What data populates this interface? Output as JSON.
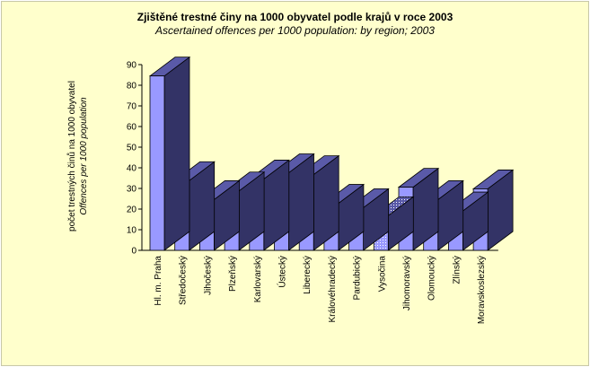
{
  "chart_data": {
    "type": "bar",
    "title": "Zjištěné trestné činy na 1000 obyvatel podle krajů  v roce 2003",
    "subtitle": "Ascertained offences per 1000 population: by region; 2003",
    "ylabel": "počet trestných činů na 1000 obyvatel",
    "ylabel_en": "Offences per 1000 population",
    "categories": [
      "Hl. m. Praha",
      "Středočeský",
      "Jihočeský",
      "Plzeňský",
      "Karlovarský",
      "Ústecký",
      "Liberecký",
      "Královéhradecký",
      "Pardubický",
      "Vysočina",
      "Jihomoravský",
      "Olomoucký",
      "Zlínský",
      "Moravskoslezský"
    ],
    "values": [
      84.5,
      33.8,
      24.6,
      28.8,
      34.6,
      37.6,
      36.7,
      22.8,
      20.7,
      16.8,
      30.6,
      24.6,
      19.1,
      29.8
    ],
    "highlight_index": 9,
    "ylim": [
      0,
      90
    ],
    "yticks": [
      0,
      10,
      20,
      30,
      40,
      50,
      60,
      70,
      80,
      90
    ],
    "grid": false,
    "style": "3d-bar",
    "colors": {
      "bar_front": "#9999ff",
      "bar_side": "#333366",
      "bar_top": "#5a5aa8",
      "highlight_pattern": "dotted",
      "background": "#ffffcc"
    }
  }
}
